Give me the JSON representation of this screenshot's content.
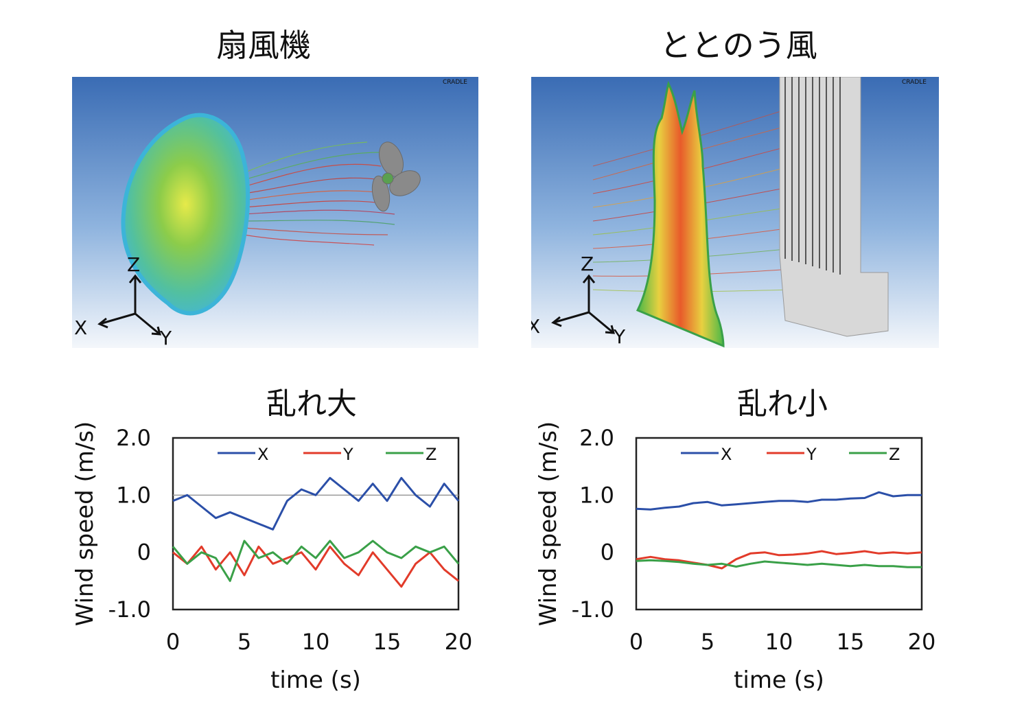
{
  "left_column": {
    "title": "扇風機",
    "simulation": {
      "watermark": "CRADLE",
      "axes": {
        "z": "Z",
        "x": "X",
        "y": "Y"
      }
    },
    "chart_title": "乱れ大"
  },
  "right_column": {
    "title": "ととのう風",
    "simulation": {
      "watermark": "CRADLE",
      "axes": {
        "z": "Z",
        "x": "X",
        "y": "Y"
      }
    },
    "chart_title": "乱れ小"
  },
  "colors": {
    "X": "#2b4fa8",
    "Y": "#e23b2a",
    "Z": "#3aa048",
    "sky_top": "#3a6cb4",
    "sky_bottom": "#f4f7fb"
  },
  "chart_data": [
    {
      "type": "line",
      "title": "乱れ大",
      "xlabel": "time (s)",
      "ylabel": "Wind speed (m/s)",
      "xlim": [
        0,
        20
      ],
      "ylim": [
        -1.0,
        2.0
      ],
      "xticks": [
        "0",
        "5",
        "10",
        "15",
        "20"
      ],
      "yticks": [
        "2.0",
        "1.0",
        "0",
        "-1.0"
      ],
      "reference_line": 1.0,
      "legend_position": "top",
      "series": [
        {
          "name": "X",
          "color": "#2b4fa8",
          "x": [
            0,
            1,
            2,
            3,
            4,
            5,
            6,
            7,
            8,
            9,
            10,
            11,
            12,
            13,
            14,
            15,
            16,
            17,
            18,
            19,
            20
          ],
          "values": [
            0.9,
            1.0,
            0.8,
            0.6,
            0.7,
            0.6,
            0.5,
            0.4,
            0.9,
            1.1,
            1.0,
            1.3,
            1.1,
            0.9,
            1.2,
            0.9,
            1.3,
            1.0,
            0.8,
            1.2,
            0.9
          ]
        },
        {
          "name": "Y",
          "color": "#e23b2a",
          "x": [
            0,
            1,
            2,
            3,
            4,
            5,
            6,
            7,
            8,
            9,
            10,
            11,
            12,
            13,
            14,
            15,
            16,
            17,
            18,
            19,
            20
          ],
          "values": [
            0.0,
            -0.2,
            0.1,
            -0.3,
            0.0,
            -0.4,
            0.1,
            -0.2,
            -0.1,
            0.0,
            -0.3,
            0.1,
            -0.2,
            -0.4,
            0.0,
            -0.3,
            -0.6,
            -0.2,
            0.0,
            -0.3,
            -0.5
          ]
        },
        {
          "name": "Z",
          "color": "#3aa048",
          "x": [
            0,
            1,
            2,
            3,
            4,
            5,
            6,
            7,
            8,
            9,
            10,
            11,
            12,
            13,
            14,
            15,
            16,
            17,
            18,
            19,
            20
          ],
          "values": [
            0.1,
            -0.2,
            0.0,
            -0.1,
            -0.5,
            0.2,
            -0.1,
            0.0,
            -0.2,
            0.1,
            -0.1,
            0.2,
            -0.1,
            0.0,
            0.2,
            0.0,
            -0.1,
            0.1,
            0.0,
            0.1,
            -0.2
          ]
        }
      ]
    },
    {
      "type": "line",
      "title": "乱れ小",
      "xlabel": "time (s)",
      "ylabel": "Wind speed (m/s)",
      "xlim": [
        0,
        20
      ],
      "ylim": [
        -1.0,
        2.0
      ],
      "xticks": [
        "0",
        "5",
        "10",
        "15",
        "20"
      ],
      "yticks": [
        "2.0",
        "1.0",
        "0",
        "-1.0"
      ],
      "legend_position": "top",
      "series": [
        {
          "name": "X",
          "color": "#2b4fa8",
          "x": [
            0,
            1,
            2,
            3,
            4,
            5,
            6,
            7,
            8,
            9,
            10,
            11,
            12,
            13,
            14,
            15,
            16,
            17,
            18,
            19,
            20
          ],
          "values": [
            0.76,
            0.75,
            0.78,
            0.8,
            0.86,
            0.88,
            0.82,
            0.84,
            0.86,
            0.88,
            0.9,
            0.9,
            0.88,
            0.92,
            0.92,
            0.94,
            0.95,
            1.05,
            0.98,
            1.0,
            1.0
          ]
        },
        {
          "name": "Y",
          "color": "#e23b2a",
          "x": [
            0,
            1,
            2,
            3,
            4,
            5,
            6,
            7,
            8,
            9,
            10,
            11,
            12,
            13,
            14,
            15,
            16,
            17,
            18,
            19,
            20
          ],
          "values": [
            -0.12,
            -0.08,
            -0.12,
            -0.14,
            -0.18,
            -0.22,
            -0.28,
            -0.12,
            -0.02,
            0.0,
            -0.05,
            -0.04,
            -0.02,
            0.02,
            -0.03,
            -0.01,
            0.02,
            -0.02,
            0.0,
            -0.02,
            0.0
          ]
        },
        {
          "name": "Z",
          "color": "#3aa048",
          "x": [
            0,
            1,
            2,
            3,
            4,
            5,
            6,
            7,
            8,
            9,
            10,
            11,
            12,
            13,
            14,
            15,
            16,
            17,
            18,
            19,
            20
          ],
          "values": [
            -0.15,
            -0.14,
            -0.15,
            -0.17,
            -0.2,
            -0.22,
            -0.2,
            -0.25,
            -0.2,
            -0.16,
            -0.18,
            -0.2,
            -0.22,
            -0.2,
            -0.22,
            -0.24,
            -0.22,
            -0.24,
            -0.24,
            -0.26,
            -0.26
          ]
        }
      ]
    }
  ]
}
